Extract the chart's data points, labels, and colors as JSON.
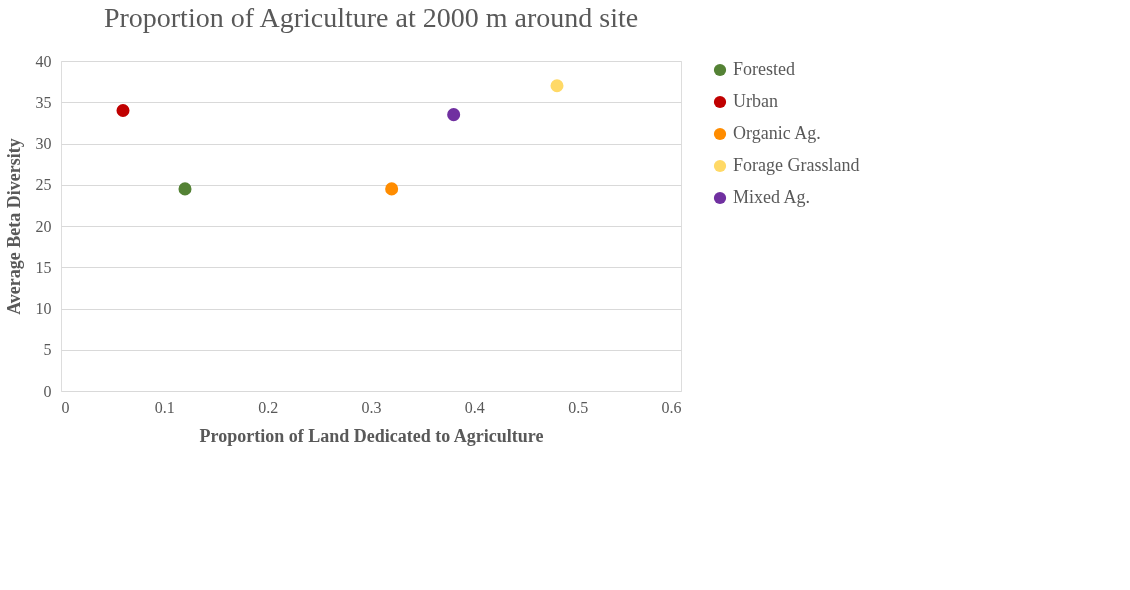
{
  "chart_data": {
    "type": "scatter",
    "title": "Proportion of Agriculture at 2000 m around site",
    "xlabel": "Proportion of Land Dedicated to Agriculture",
    "ylabel": "Average Beta Diversity",
    "series": [
      {
        "name": "Forested",
        "color": "#548235",
        "x": [
          0.12
        ],
        "values": [
          24.5
        ]
      },
      {
        "name": "Urban",
        "color": "#c00000",
        "x": [
          0.06
        ],
        "values": [
          34
        ]
      },
      {
        "name": "Organic Ag.",
        "color": "#ff8c00",
        "x": [
          0.32
        ],
        "values": [
          24.5
        ]
      },
      {
        "name": "Forage Grassland",
        "color": "#ffd966",
        "x": [
          0.48
        ],
        "values": [
          37
        ]
      },
      {
        "name": "Mixed Ag.",
        "color": "#7030a0",
        "x": [
          0.38
        ],
        "values": [
          33.5
        ]
      }
    ],
    "xlim": [
      0,
      0.6
    ],
    "xticks": [
      0,
      0.1,
      0.2,
      0.3,
      0.4,
      0.5,
      0.6
    ],
    "ylim": [
      0,
      40
    ],
    "yticks": [
      0,
      5,
      10,
      15,
      20,
      25,
      30,
      35,
      40
    ],
    "grid": "y",
    "legend": "right",
    "marker": "circle"
  }
}
